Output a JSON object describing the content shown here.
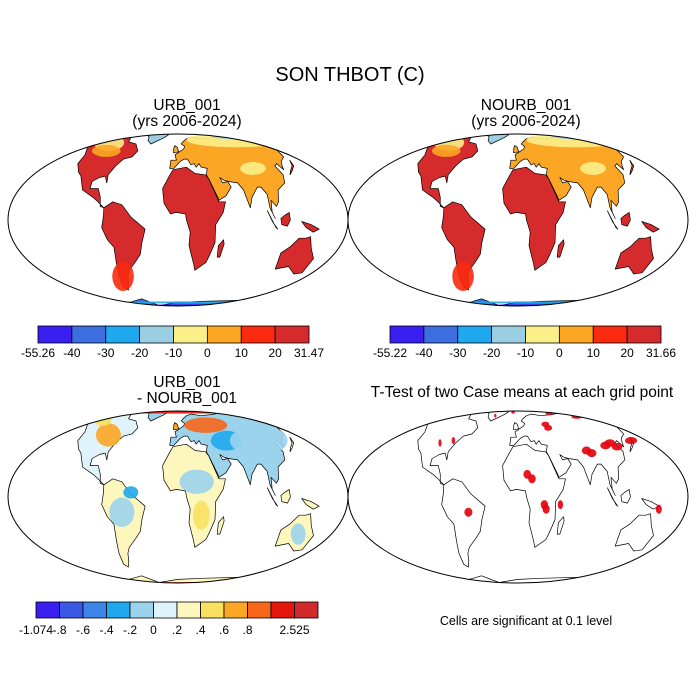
{
  "title": "SON THBOT (C)",
  "panels": [
    {
      "title_line1": "URB_001",
      "title_line2": "(yrs 2006-2024)"
    },
    {
      "title_line1": "NOURB_001",
      "title_line2": "(yrs 2006-2024)"
    },
    {
      "title_line1": "URB_001",
      "title_line2": "- NOURB_001"
    },
    {
      "title_line1": "T-Test of two Case means at each grid point",
      "title_line2": ""
    }
  ],
  "significance_note": "Cells are significant at 0.1 level",
  "chart_data": [
    {
      "type": "heatmap",
      "title": "URB_001 (yrs 2006-2024)",
      "colorbar": {
        "colors": [
          "#3b1ff0",
          "#3c6ee0",
          "#1fa8ee",
          "#9bcde3",
          "#fbf088",
          "#fba624",
          "#fa2a10",
          "#d52b2d"
        ],
        "labels": [
          "-55.26",
          "-40",
          "-30",
          "-20",
          "-10",
          "0",
          "10",
          "20",
          "31.47"
        ]
      }
    },
    {
      "type": "heatmap",
      "title": "NOURB_001 (yrs 2006-2024)",
      "colorbar": {
        "colors": [
          "#3b1ff0",
          "#3c6ee0",
          "#1fa8ee",
          "#9bcde3",
          "#fbf088",
          "#fba624",
          "#fa2a10",
          "#d52b2d"
        ],
        "labels": [
          "-55.22",
          "-40",
          "-30",
          "-20",
          "-10",
          "0",
          "10",
          "20",
          "31.66"
        ]
      }
    },
    {
      "type": "heatmap",
      "title": "URB_001 - NOURB_001",
      "colorbar": {
        "colors": [
          "#3b1ff0",
          "#3c56e6",
          "#3c86ea",
          "#1fa8ee",
          "#9bd3ec",
          "#dff3fb",
          "#fdf7bd",
          "#f9e061",
          "#fba624",
          "#f7661b",
          "#e3170c",
          "#d12a2c"
        ],
        "labels": [
          "-1.074",
          "-.8",
          "-.6",
          "-.4",
          "-.2",
          "0",
          ".2",
          ".4",
          ".6",
          ".8",
          "",
          "2.525"
        ]
      }
    },
    {
      "type": "heatmap",
      "title": "T-Test of two Case means at each grid point",
      "significant_color": "#e3000b"
    }
  ]
}
